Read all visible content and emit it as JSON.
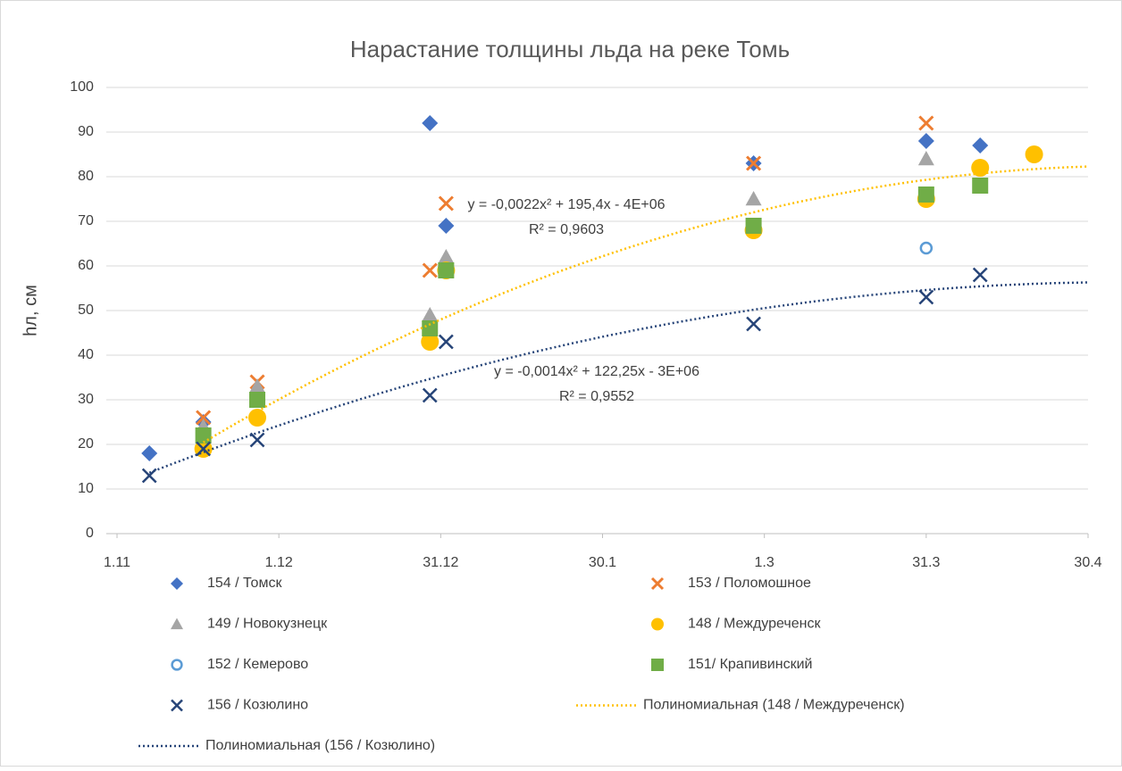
{
  "chart_data": {
    "type": "scatter",
    "title": "Нарастание толщины льда на реке Томь",
    "y_label": "hл, см",
    "xlim": [
      -2,
      180
    ],
    "xticks": [
      {
        "value": 0,
        "label": "1.11"
      },
      {
        "value": 30,
        "label": "1.12"
      },
      {
        "value": 60,
        "label": "31.12"
      },
      {
        "value": 90,
        "label": "30.1"
      },
      {
        "value": 120,
        "label": "1.3"
      },
      {
        "value": 150,
        "label": "31.3"
      },
      {
        "value": 180,
        "label": "30.4"
      }
    ],
    "ylim": [
      0,
      100
    ],
    "yticks": [
      0,
      10,
      20,
      30,
      40,
      50,
      60,
      70,
      80,
      90,
      100
    ],
    "grid": true,
    "legend": "bottom",
    "series": [
      {
        "name": "154 / Томск",
        "color": "#4472c4",
        "marker": "diamond",
        "x": [
          6,
          16,
          26,
          58,
          61,
          118,
          150,
          160
        ],
        "values": [
          18,
          25,
          31,
          92,
          69,
          83,
          88,
          87
        ]
      },
      {
        "name": "153 / Поломошное",
        "color": "#ed7d31",
        "marker": "x",
        "x": [
          16,
          26,
          58,
          61,
          118,
          150
        ],
        "values": [
          26,
          34,
          59,
          74,
          83,
          92
        ]
      },
      {
        "name": "149 / Новокузнецк",
        "color": "#a5a5a5",
        "marker": "triangle",
        "x": [
          16,
          26,
          58,
          61,
          118,
          150
        ],
        "values": [
          24,
          33,
          49,
          62,
          75,
          84
        ]
      },
      {
        "name": "148 / Междуреченск",
        "color": "#ffc000",
        "marker": "circle",
        "x": [
          16,
          26,
          58,
          61,
          118,
          150,
          160,
          170
        ],
        "values": [
          19,
          26,
          43,
          59,
          68,
          75,
          82,
          85
        ],
        "trendline": {
          "name": "Полиномиальная (148 / Междуреченск)",
          "equation": "y = -0,0022x² + 195,4x - 4E+06",
          "r2": "R² = 0,9603"
        }
      },
      {
        "name": "152 / Кемерово",
        "color": "#5b9bd5",
        "marker": "open-circle",
        "x": [
          150
        ],
        "values": [
          64
        ]
      },
      {
        "name": "151/ Крапивинский",
        "color": "#70ad47",
        "marker": "square",
        "x": [
          16,
          26,
          58,
          61,
          118,
          150,
          160
        ],
        "values": [
          22,
          30,
          46,
          59,
          69,
          76,
          78
        ]
      },
      {
        "name": "156 / Козюлино",
        "color": "#264478",
        "marker": "cross",
        "x": [
          6,
          16,
          26,
          58,
          61,
          118,
          150,
          160
        ],
        "values": [
          13,
          19,
          21,
          31,
          43,
          47,
          53,
          58
        ],
        "trendline": {
          "name": "Полиномиальная (156 / Козюлино)",
          "equation": "y = -0,0014x² + 122,25x - 3E+06",
          "r2": "R² = 0,9552"
        }
      }
    ]
  }
}
